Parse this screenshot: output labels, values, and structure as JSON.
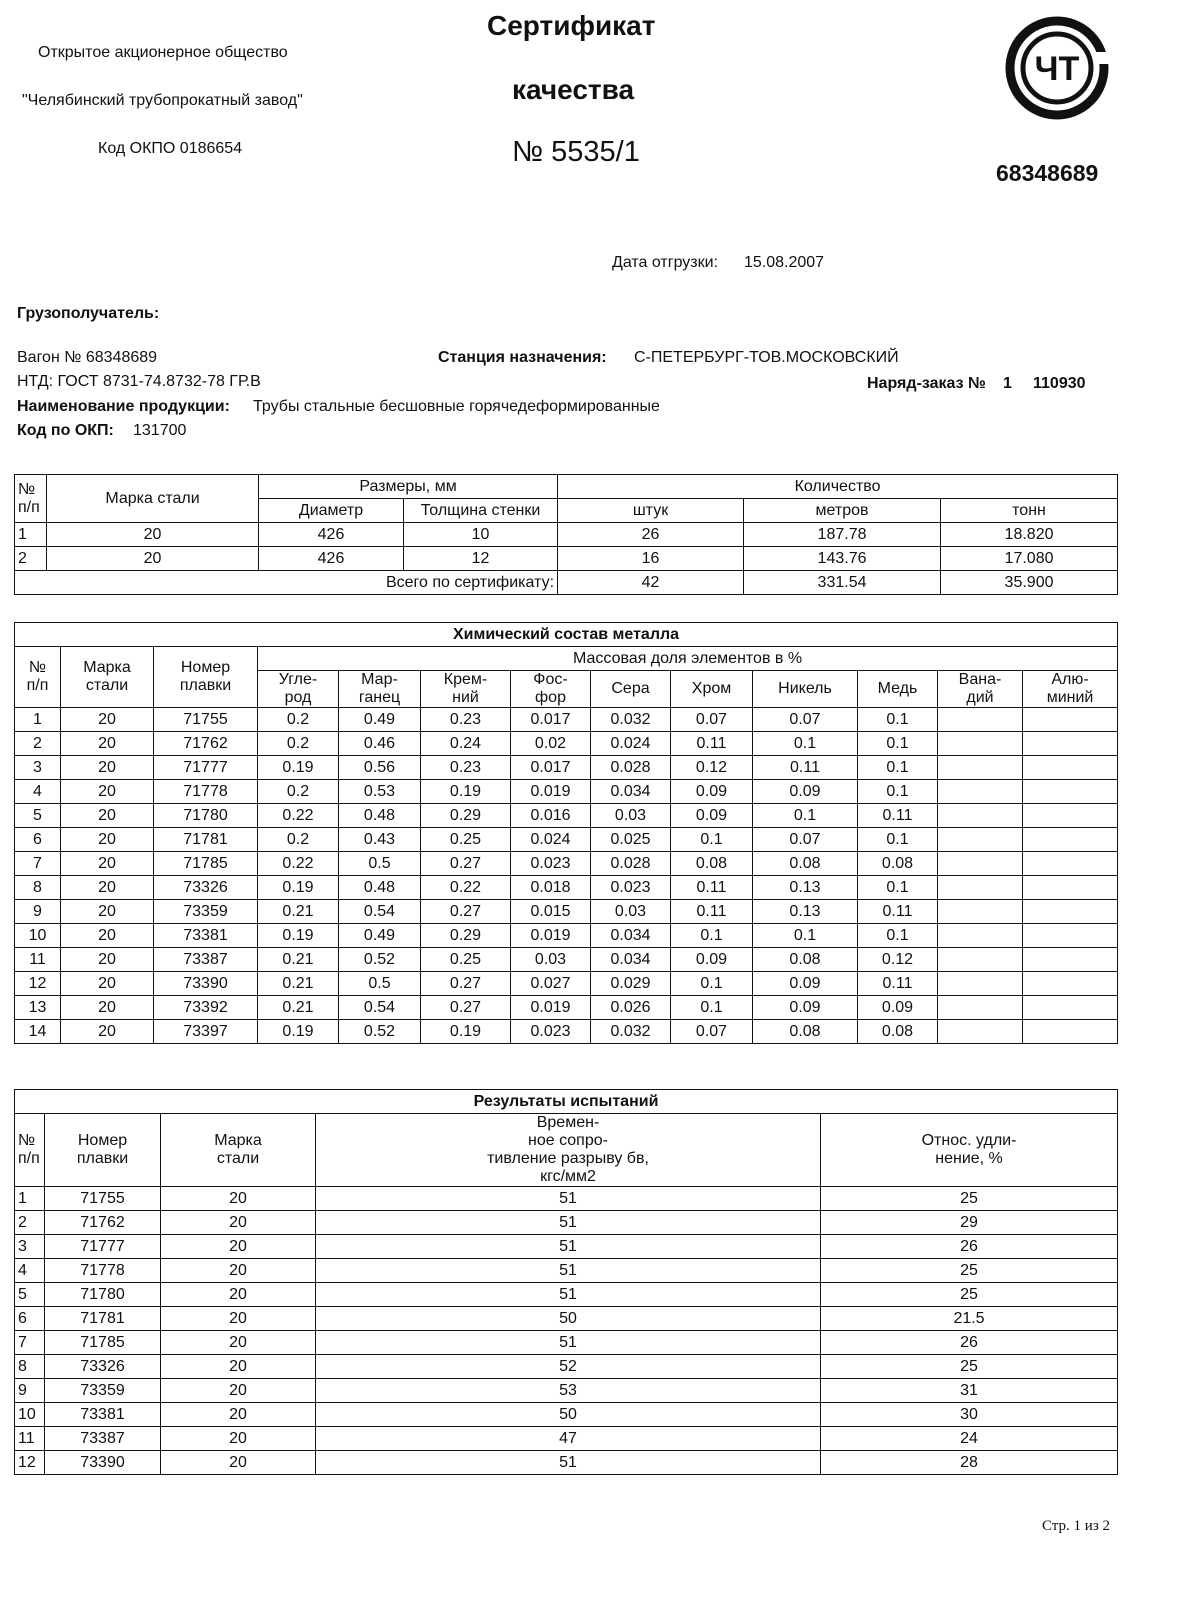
{
  "header": {
    "org_type": "Открытое акционерное общество",
    "org_name": "\"Челябинский трубопрокатный завод\"",
    "okpo": "Код ОКПО 0186654",
    "title": "Сертификат",
    "title2": "качества",
    "number": "№ 5535/1",
    "logo": "ЧТ",
    "code": "68348689"
  },
  "shipping": {
    "date_label": "Дата отгрузки:",
    "date": "15.08.2007"
  },
  "info": {
    "consignee": "Грузополучатель:",
    "wagon": "Вагон № 68348689",
    "station_label": "Станция назначения:",
    "station": "С-ПЕТЕРБУРГ-ТОВ.МОСКОВСКИЙ",
    "ntd": "НТД: ГОСТ 8731-74.8732-78 ГР.В",
    "order_label": "Наряд-заказ №",
    "order_no": "1",
    "order_id": "110930",
    "product_label": "Наименование продукции:",
    "product": "Трубы стальные бесшовные горячедеформированные",
    "okp_label": "Код по ОКП:",
    "okp": "131700"
  },
  "table1": {
    "header_top": [
      "№\nп/п",
      "Марка стали",
      "Размеры, мм",
      "Количество"
    ],
    "header_sub": [
      "Диаметр",
      "Толщина стенки",
      "штук",
      "метров",
      "тонн"
    ],
    "rows": [
      [
        "1",
        "20",
        "426",
        "10",
        "26",
        "187.78",
        "18.820"
      ],
      [
        "2",
        "20",
        "426",
        "12",
        "16",
        "143.76",
        "17.080"
      ]
    ],
    "total": {
      "label": "Всего по сертификату:",
      "values": [
        "42",
        "331.54",
        "35.900"
      ]
    }
  },
  "table2": {
    "title": "Химический состав металла",
    "header_top": [
      "№\nп/п",
      "Марка\nстали",
      "Номер\nплавки",
      "Массовая доля элементов в %"
    ],
    "header_sub": [
      "Угле-\nрод",
      "Мар-\nганец",
      "Крем-\nний",
      "Фос-\nфор",
      "Сера",
      "Хром",
      "Никель",
      "Медь",
      "Вана-\nдий",
      "Алю-\nминий"
    ],
    "rows": [
      [
        "1",
        "20",
        "71755",
        "0.2",
        "0.49",
        "0.23",
        "0.017",
        "0.032",
        "0.07",
        "0.07",
        "0.1"
      ],
      [
        "2",
        "20",
        "71762",
        "0.2",
        "0.46",
        "0.24",
        "0.02",
        "0.024",
        "0.11",
        "0.1",
        "0.1"
      ],
      [
        "3",
        "20",
        "71777",
        "0.19",
        "0.56",
        "0.23",
        "0.017",
        "0.028",
        "0.12",
        "0.11",
        "0.1"
      ],
      [
        "4",
        "20",
        "71778",
        "0.2",
        "0.53",
        "0.19",
        "0.019",
        "0.034",
        "0.09",
        "0.09",
        "0.1"
      ],
      [
        "5",
        "20",
        "71780",
        "0.22",
        "0.48",
        "0.29",
        "0.016",
        "0.03",
        "0.09",
        "0.1",
        "0.11"
      ],
      [
        "6",
        "20",
        "71781",
        "0.2",
        "0.43",
        "0.25",
        "0.024",
        "0.025",
        "0.1",
        "0.07",
        "0.1"
      ],
      [
        "7",
        "20",
        "71785",
        "0.22",
        "0.5",
        "0.27",
        "0.023",
        "0.028",
        "0.08",
        "0.08",
        "0.08"
      ],
      [
        "8",
        "20",
        "73326",
        "0.19",
        "0.48",
        "0.22",
        "0.018",
        "0.023",
        "0.11",
        "0.13",
        "0.1"
      ],
      [
        "9",
        "20",
        "73359",
        "0.21",
        "0.54",
        "0.27",
        "0.015",
        "0.03",
        "0.11",
        "0.13",
        "0.11"
      ],
      [
        "10",
        "20",
        "73381",
        "0.19",
        "0.49",
        "0.29",
        "0.019",
        "0.034",
        "0.1",
        "0.1",
        "0.1"
      ],
      [
        "11",
        "20",
        "73387",
        "0.21",
        "0.52",
        "0.25",
        "0.03",
        "0.034",
        "0.09",
        "0.08",
        "0.12"
      ],
      [
        "12",
        "20",
        "73390",
        "0.21",
        "0.5",
        "0.27",
        "0.027",
        "0.029",
        "0.1",
        "0.09",
        "0.11"
      ],
      [
        "13",
        "20",
        "73392",
        "0.21",
        "0.54",
        "0.27",
        "0.019",
        "0.026",
        "0.1",
        "0.09",
        "0.09"
      ],
      [
        "14",
        "20",
        "73397",
        "0.19",
        "0.52",
        "0.19",
        "0.023",
        "0.032",
        "0.07",
        "0.08",
        "0.08"
      ]
    ]
  },
  "table3": {
    "title": "Результаты испытаний",
    "header": [
      "№\nп/п",
      "Номер\nплавки",
      "Марка\nстали",
      "Времен-\nное сопро-\nтивление разрыву бв,\nкгс/мм2",
      "Относ. удли-\nнение, %"
    ],
    "rows": [
      [
        "1",
        "71755",
        "20",
        "51",
        "25"
      ],
      [
        "2",
        "71762",
        "20",
        "51",
        "29"
      ],
      [
        "3",
        "71777",
        "20",
        "51",
        "26"
      ],
      [
        "4",
        "71778",
        "20",
        "51",
        "25"
      ],
      [
        "5",
        "71780",
        "20",
        "51",
        "25"
      ],
      [
        "6",
        "71781",
        "20",
        "50",
        "21.5"
      ],
      [
        "7",
        "71785",
        "20",
        "51",
        "26"
      ],
      [
        "8",
        "73326",
        "20",
        "52",
        "25"
      ],
      [
        "9",
        "73359",
        "20",
        "53",
        "31"
      ],
      [
        "10",
        "73381",
        "20",
        "50",
        "30"
      ],
      [
        "11",
        "73387",
        "20",
        "47",
        "24"
      ],
      [
        "12",
        "73390",
        "20",
        "51",
        "28"
      ]
    ]
  },
  "footer": {
    "page": "Стр. 1 из 2"
  }
}
